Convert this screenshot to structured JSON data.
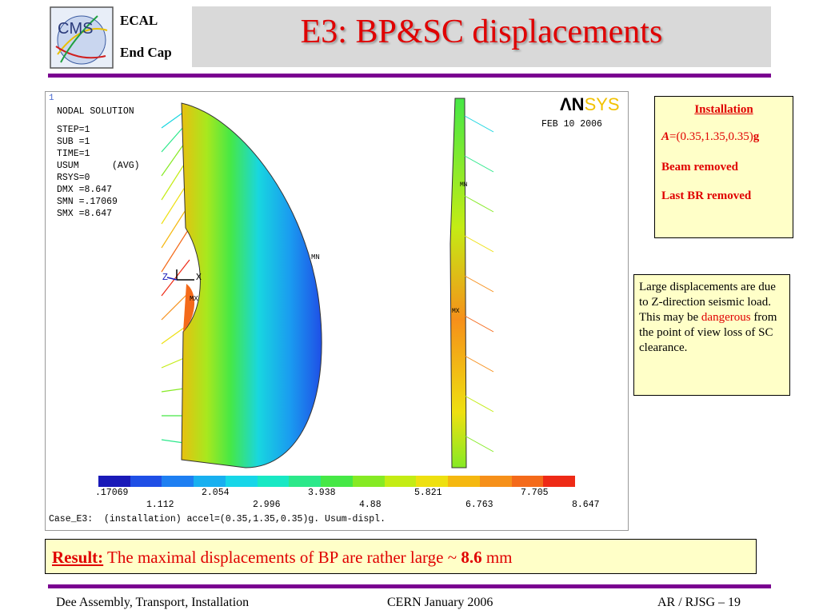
{
  "header": {
    "title": "E3: BP&SC displacements",
    "logo_text": "CMS",
    "ecal_label": "ECAL",
    "endcap_label": "End Cap"
  },
  "figure": {
    "step_label": "1",
    "nodal_solution": "NODAL SOLUTION",
    "params": [
      "STEP=1",
      "SUB =1",
      "TIME=1",
      "USUM      (AVG)",
      "RSYS=0",
      "DMX =8.647",
      "SMN =.17069",
      "SMX =8.647"
    ],
    "ansys_an": "ΛN",
    "ansys_sys": "SYS",
    "date": "FEB 10 2006",
    "mn_label": "MN",
    "mx_label": "MX",
    "axis_z": "Z",
    "axis_x": "X",
    "mn_label_side": "MN",
    "mx_label_side": "MX",
    "legend_top": [
      ".17069",
      "2.054",
      "3.938",
      "5.821",
      "7.705"
    ],
    "legend_bottom": [
      "1.112",
      "2.996",
      "4.88",
      "6.763",
      "8.647"
    ],
    "legend_colors": [
      "#1a1ab8",
      "#1f4fe6",
      "#1e7ff2",
      "#18b0f0",
      "#17d6e8",
      "#18e8c4",
      "#2be88a",
      "#46e846",
      "#86ea24",
      "#c4ec14",
      "#eee010",
      "#f5b810",
      "#f6901a",
      "#f46a1a",
      "#ee2a16"
    ],
    "caption": "Case_E3:  (installation) accel=(0.35,1.35,0.35)g. Usum-displ."
  },
  "installation_box": {
    "title": "Installation",
    "accel_a": "A",
    "accel_rest": "=(0.35,1.35,0.35)",
    "accel_g": "g",
    "line1": "Beam removed",
    "line2": "Last BR removed"
  },
  "note_box": {
    "text_before": "Large displacements are due to Z-direction seismic load. This may be ",
    "highlight": "dangerous",
    "text_after": " from the point of view loss of SC clearance."
  },
  "result": {
    "label": "Result:",
    "text": " The maximal displacements of BP are rather large ~ ",
    "value": "8.6",
    "unit": " mm"
  },
  "footer": {
    "left": "Dee Assembly, Transport, Installation",
    "middle": "CERN  January 2006",
    "right": "AR / RJSG – 19"
  },
  "colors": {
    "title": "#e00000",
    "rule": "#7a0090",
    "box_bg": "#ffffc8"
  }
}
